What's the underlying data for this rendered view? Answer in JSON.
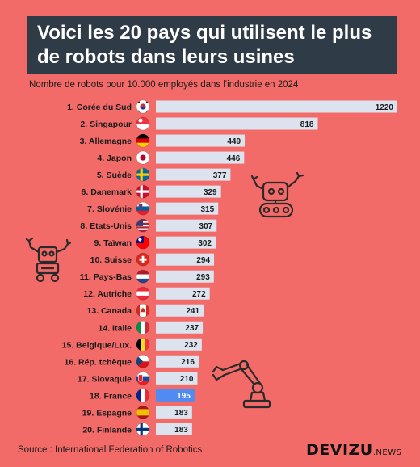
{
  "title_lines": [
    "Voici les 20 pays qui utilisent le plus",
    "de robots dans leurs usines"
  ],
  "subtitle": "Nombre de robots pour 10.000 employés dans l'industrie en 2024",
  "source": "Source : International Federation of Robotics",
  "brand": {
    "main": "DEVIZU",
    "suffix": ".NEWS"
  },
  "colors": {
    "background": "#f26b69",
    "bar": "#dce3ee",
    "highlight_bar": "#4f8bf0",
    "title_box": "#2f3b47"
  },
  "chart_data": {
    "type": "bar",
    "orientation": "horizontal",
    "categories": [
      "1. Corée du Sud",
      "2. Singapour",
      "3. Allemagne",
      "4. Japon",
      "5. Suède",
      "6. Danemark",
      "7. Slovénie",
      "8. Etats-Unis",
      "9. Taïwan",
      "10. Suisse",
      "11. Pays-Bas",
      "12. Autriche",
      "13. Canada",
      "14. Italie",
      "15. Belgique/Lux.",
      "16. Rép. tchèque",
      "17. Slovaquie",
      "18. France",
      "19. Espagne",
      "20. Finlande"
    ],
    "values": [
      1220,
      818,
      449,
      446,
      377,
      329,
      315,
      307,
      302,
      294,
      293,
      272,
      241,
      237,
      232,
      216,
      210,
      195,
      183,
      183
    ],
    "highlight": "18. France",
    "flags": [
      "south-korea-flag-icon",
      "singapore-flag-icon",
      "germany-flag-icon",
      "japan-flag-icon",
      "sweden-flag-icon",
      "denmark-flag-icon",
      "slovenia-flag-icon",
      "usa-flag-icon",
      "taiwan-flag-icon",
      "switzerland-flag-icon",
      "netherlands-flag-icon",
      "austria-flag-icon",
      "canada-flag-icon",
      "italy-flag-icon",
      "belgium-flag-icon",
      "czechia-flag-icon",
      "slovakia-flag-icon",
      "france-flag-icon",
      "spain-flag-icon",
      "finland-flag-icon"
    ],
    "xlim": [
      0,
      1220
    ],
    "grid": false,
    "legend": "none"
  }
}
